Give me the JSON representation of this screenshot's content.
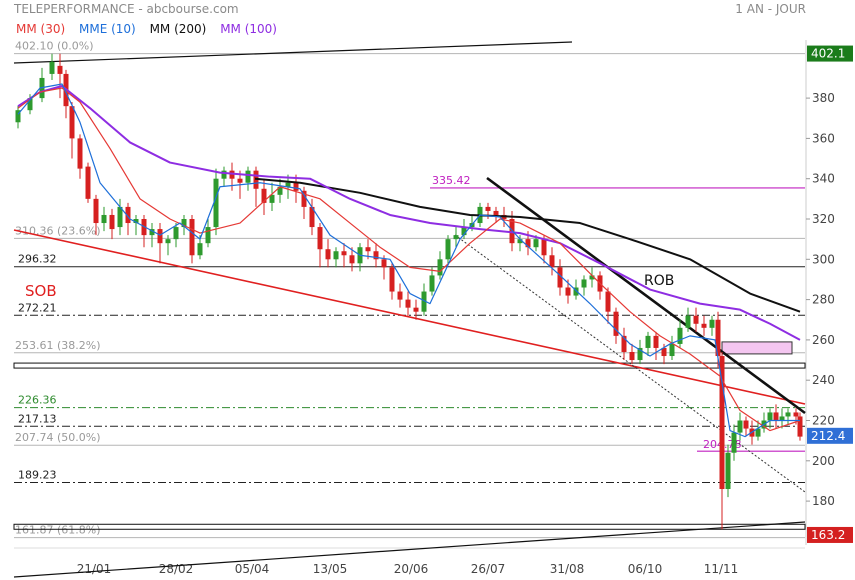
{
  "header": {
    "title": "TELEPERFORMANCE - abcbourse.com",
    "period": "1 AN - JOUR"
  },
  "legend": [
    {
      "label": "MM (30)",
      "color": "#e53935"
    },
    {
      "label": "MME (10)",
      "color": "#1e6fd9"
    },
    {
      "label": "MM (200)",
      "color": "#111111"
    },
    {
      "label": "MM (100)",
      "color": "#8e2de2"
    }
  ],
  "chart_data": {
    "type": "candlestick",
    "y_axis": {
      "range": [
        160,
        410
      ],
      "ticks": [
        180,
        200,
        220,
        240,
        260,
        280,
        300,
        320,
        340,
        360,
        380
      ]
    },
    "x_axis": {
      "labels": [
        "21/01",
        "28/02",
        "05/04",
        "13/05",
        "20/06",
        "26/07",
        "31/08",
        "06/10",
        "11/11"
      ]
    },
    "price_tags": [
      {
        "label": "402.1",
        "value": 402.1,
        "color": "#1b7c1b"
      },
      {
        "label": "212.4",
        "value": 212.4,
        "color": "#2f6fd6"
      },
      {
        "label": "163.2",
        "value": 163.2,
        "color": "#d42020"
      }
    ],
    "fibonacci_levels": [
      {
        "label": "402.10  (0.0%)",
        "value": 402.1
      },
      {
        "label": "310.36  (23.6%)",
        "value": 310.36
      },
      {
        "label": "253.61  (38.2%)",
        "value": 253.61
      },
      {
        "label": "207.74  (50.0%)",
        "value": 207.74
      },
      {
        "label": "161.87  (61.8%)",
        "value": 161.87
      }
    ],
    "level_labels": [
      {
        "label": "296.32",
        "value": 296.32,
        "color": "#222222",
        "style": "solid"
      },
      {
        "label": "272.21",
        "value": 272.21,
        "color": "#222222",
        "style": "dashdot"
      },
      {
        "label": "226.36",
        "value": 226.36,
        "color": "#2e8b2e",
        "style": "dashdot"
      },
      {
        "label": "217.13",
        "value": 217.13,
        "color": "#222222",
        "style": "dashdot"
      },
      {
        "label": "189.23",
        "value": 189.23,
        "color": "#222222",
        "style": "dashdot"
      }
    ],
    "annotations": [
      {
        "label": "335.42",
        "value": 335.42,
        "color": "#c020c0"
      },
      {
        "label": "204.78",
        "value": 204.78,
        "color": "#c020c0"
      },
      {
        "label": "SOB",
        "color": "#e02020"
      },
      {
        "label": "ROB",
        "color": "#111111"
      }
    ],
    "series": [
      {
        "name": "MM (200)",
        "color": "#111111",
        "values": [
          [
            255,
            340
          ],
          [
            300,
            338
          ],
          [
            360,
            333
          ],
          [
            420,
            326
          ],
          [
            470,
            322
          ],
          [
            520,
            321
          ],
          [
            580,
            318
          ],
          [
            630,
            310
          ],
          [
            690,
            300
          ],
          [
            750,
            283
          ],
          [
            800,
            274
          ]
        ]
      },
      {
        "name": "MM (100)",
        "color": "#8e2de2",
        "values": [
          [
            18,
            376
          ],
          [
            40,
            383
          ],
          [
            62,
            386
          ],
          [
            90,
            375
          ],
          [
            130,
            358
          ],
          [
            170,
            348
          ],
          [
            220,
            343
          ],
          [
            270,
            341
          ],
          [
            310,
            340
          ],
          [
            350,
            330
          ],
          [
            390,
            322
          ],
          [
            430,
            318
          ],
          [
            480,
            315
          ],
          [
            520,
            313
          ],
          [
            560,
            308
          ],
          [
            600,
            298
          ],
          [
            650,
            285
          ],
          [
            700,
            278
          ],
          [
            740,
            275
          ],
          [
            770,
            268
          ],
          [
            800,
            260
          ]
        ]
      },
      {
        "name": "MM (30)",
        "color": "#e53935",
        "values": [
          [
            18,
            375
          ],
          [
            40,
            383
          ],
          [
            62,
            385
          ],
          [
            80,
            378
          ],
          [
            110,
            355
          ],
          [
            140,
            330
          ],
          [
            170,
            320
          ],
          [
            200,
            313
          ],
          [
            240,
            318
          ],
          [
            280,
            336
          ],
          [
            320,
            330
          ],
          [
            350,
            318
          ],
          [
            380,
            306
          ],
          [
            410,
            296
          ],
          [
            440,
            294
          ],
          [
            470,
            308
          ],
          [
            500,
            320
          ],
          [
            520,
            318
          ],
          [
            560,
            308
          ],
          [
            600,
            288
          ],
          [
            630,
            274
          ],
          [
            660,
            262
          ],
          [
            690,
            253
          ],
          [
            720,
            242
          ],
          [
            740,
            225
          ],
          [
            770,
            215
          ],
          [
            800,
            220
          ]
        ]
      },
      {
        "name": "MME (10)",
        "color": "#1e6fd9",
        "values": [
          [
            18,
            372
          ],
          [
            40,
            385
          ],
          [
            62,
            387
          ],
          [
            80,
            368
          ],
          [
            100,
            338
          ],
          [
            130,
            320
          ],
          [
            160,
            312
          ],
          [
            180,
            318
          ],
          [
            200,
            310
          ],
          [
            220,
            336
          ],
          [
            260,
            338
          ],
          [
            300,
            335
          ],
          [
            330,
            312
          ],
          [
            360,
            302
          ],
          [
            390,
            300
          ],
          [
            410,
            283
          ],
          [
            430,
            278
          ],
          [
            460,
            310
          ],
          [
            480,
            322
          ],
          [
            500,
            321
          ],
          [
            520,
            310
          ],
          [
            560,
            292
          ],
          [
            590,
            278
          ],
          [
            610,
            268
          ],
          [
            630,
            258
          ],
          [
            650,
            252
          ],
          [
            670,
            258
          ],
          [
            690,
            262
          ],
          [
            715,
            260
          ],
          [
            730,
            215
          ],
          [
            745,
            212
          ],
          [
            770,
            220
          ],
          [
            800,
            220
          ]
        ]
      }
    ],
    "candles": [
      [
        18,
        368,
        374,
        365,
        376
      ],
      [
        30,
        374,
        380,
        372,
        382
      ],
      [
        42,
        380,
        390,
        378,
        395
      ],
      [
        52,
        392,
        398,
        389,
        402
      ],
      [
        60,
        396,
        392,
        380,
        402
      ],
      [
        66,
        392,
        376,
        370,
        394
      ],
      [
        72,
        376,
        360,
        350,
        378
      ],
      [
        80,
        360,
        345,
        340,
        362
      ],
      [
        88,
        346,
        330,
        328,
        348
      ],
      [
        96,
        330,
        318,
        312,
        332
      ],
      [
        104,
        318,
        322,
        314,
        326
      ],
      [
        112,
        322,
        315,
        310,
        325
      ],
      [
        120,
        316,
        326,
        312,
        330
      ],
      [
        128,
        326,
        318,
        312,
        328
      ],
      [
        136,
        318,
        320,
        312,
        322
      ],
      [
        144,
        320,
        312,
        306,
        322
      ],
      [
        152,
        312,
        315,
        306,
        318
      ],
      [
        160,
        315,
        308,
        298,
        318
      ],
      [
        168,
        308,
        310,
        302,
        312
      ],
      [
        176,
        310,
        316,
        306,
        318
      ],
      [
        184,
        316,
        320,
        312,
        322
      ],
      [
        192,
        320,
        302,
        298,
        322
      ],
      [
        200,
        302,
        308,
        300,
        312
      ],
      [
        208,
        308,
        316,
        306,
        320
      ],
      [
        216,
        316,
        340,
        312,
        345
      ],
      [
        224,
        340,
        344,
        336,
        346
      ],
      [
        232,
        344,
        340,
        334,
        348
      ],
      [
        240,
        340,
        338,
        330,
        344
      ],
      [
        248,
        338,
        344,
        334,
        346
      ],
      [
        256,
        344,
        335,
        326,
        346
      ],
      [
        264,
        335,
        328,
        322,
        340
      ],
      [
        272,
        328,
        332,
        324,
        338
      ],
      [
        280,
        332,
        336,
        328,
        340
      ],
      [
        288,
        336,
        338,
        330,
        342
      ],
      [
        296,
        338,
        334,
        328,
        342
      ],
      [
        304,
        334,
        326,
        320,
        336
      ],
      [
        312,
        326,
        316,
        312,
        330
      ],
      [
        320,
        316,
        305,
        296,
        318
      ],
      [
        328,
        305,
        300,
        296,
        310
      ],
      [
        336,
        300,
        304,
        296,
        306
      ],
      [
        344,
        304,
        302,
        296,
        308
      ],
      [
        352,
        302,
        298,
        294,
        306
      ],
      [
        360,
        298,
        306,
        294,
        308
      ],
      [
        368,
        306,
        304,
        300,
        310
      ],
      [
        376,
        304,
        300,
        296,
        308
      ],
      [
        384,
        300,
        296,
        290,
        302
      ],
      [
        392,
        296,
        284,
        280,
        298
      ],
      [
        400,
        284,
        280,
        276,
        288
      ],
      [
        408,
        280,
        276,
        272,
        284
      ],
      [
        416,
        276,
        274,
        270,
        280
      ],
      [
        424,
        274,
        284,
        272,
        288
      ],
      [
        432,
        284,
        292,
        282,
        296
      ],
      [
        440,
        292,
        300,
        290,
        304
      ],
      [
        448,
        300,
        310,
        298,
        312
      ],
      [
        456,
        310,
        312,
        306,
        316
      ],
      [
        464,
        312,
        316,
        310,
        320
      ],
      [
        472,
        316,
        318,
        314,
        322
      ],
      [
        480,
        318,
        326,
        316,
        328
      ],
      [
        488,
        326,
        324,
        320,
        328
      ],
      [
        496,
        324,
        322,
        318,
        326
      ],
      [
        504,
        322,
        320,
        316,
        326
      ],
      [
        512,
        320,
        308,
        304,
        324
      ],
      [
        520,
        308,
        310,
        304,
        312
      ],
      [
        528,
        310,
        306,
        302,
        314
      ],
      [
        536,
        306,
        310,
        304,
        312
      ],
      [
        544,
        310,
        302,
        298,
        312
      ],
      [
        552,
        302,
        296,
        292,
        306
      ],
      [
        560,
        296,
        286,
        282,
        300
      ],
      [
        568,
        286,
        282,
        278,
        290
      ],
      [
        576,
        282,
        286,
        280,
        290
      ],
      [
        584,
        286,
        290,
        282,
        292
      ],
      [
        592,
        290,
        292,
        286,
        296
      ],
      [
        600,
        292,
        284,
        280,
        294
      ],
      [
        608,
        284,
        274,
        268,
        286
      ],
      [
        616,
        274,
        262,
        258,
        276
      ],
      [
        624,
        262,
        254,
        250,
        266
      ],
      [
        632,
        254,
        250,
        248,
        258
      ],
      [
        640,
        250,
        256,
        248,
        260
      ],
      [
        648,
        256,
        262,
        252,
        264
      ],
      [
        656,
        262,
        256,
        250,
        264
      ],
      [
        664,
        256,
        252,
        248,
        258
      ],
      [
        672,
        252,
        258,
        250,
        262
      ],
      [
        680,
        258,
        266,
        256,
        270
      ],
      [
        688,
        266,
        272,
        264,
        276
      ],
      [
        696,
        272,
        268,
        264,
        276
      ],
      [
        704,
        268,
        266,
        262,
        272
      ],
      [
        712,
        266,
        270,
        262,
        272
      ],
      [
        718,
        270,
        252,
        246,
        274
      ],
      [
        722,
        252,
        186,
        166,
        254
      ],
      [
        728,
        186,
        204,
        182,
        208
      ],
      [
        734,
        204,
        214,
        200,
        218
      ],
      [
        740,
        214,
        220,
        210,
        224
      ],
      [
        746,
        220,
        216,
        212,
        222
      ],
      [
        752,
        216,
        212,
        208,
        220
      ],
      [
        758,
        212,
        216,
        210,
        220
      ],
      [
        764,
        216,
        220,
        214,
        224
      ],
      [
        770,
        220,
        224,
        216,
        226
      ],
      [
        776,
        224,
        220,
        216,
        228
      ],
      [
        782,
        220,
        222,
        216,
        226
      ],
      [
        788,
        222,
        224,
        218,
        226
      ],
      [
        796,
        224,
        222,
        218,
        226
      ],
      [
        800,
        222,
        212,
        210,
        224
      ]
    ]
  }
}
